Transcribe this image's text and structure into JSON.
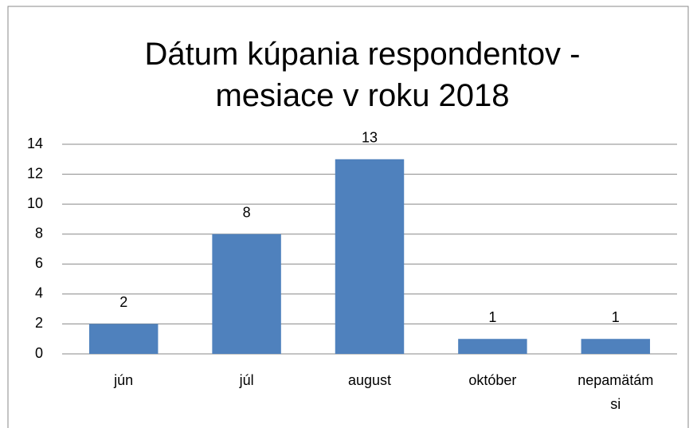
{
  "chart_data": {
    "type": "bar",
    "title": "Dátum kúpania respondentov - mesiace v roku 2018",
    "categories": [
      "jún",
      "júl",
      "august",
      "október",
      "nepamätám si"
    ],
    "values": [
      2,
      8,
      13,
      1,
      1
    ],
    "color": "#4f81bd",
    "ylim": [
      0,
      14
    ],
    "yticks": [
      0,
      2,
      4,
      6,
      8,
      10,
      12,
      14
    ],
    "grid": true
  }
}
